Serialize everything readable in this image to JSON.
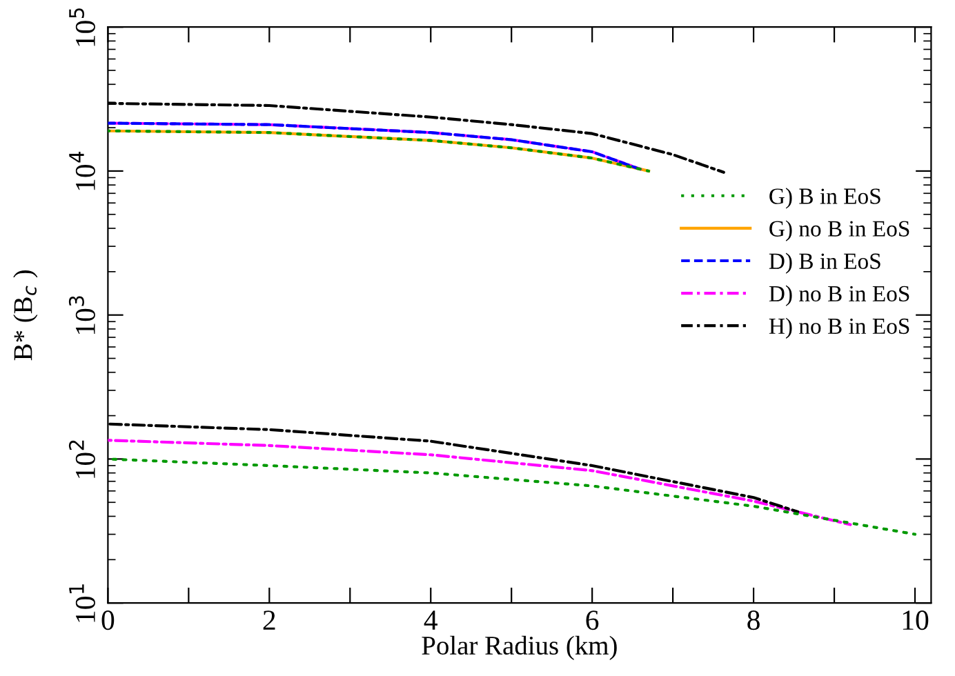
{
  "chart_data": {
    "type": "line",
    "xlabel": "Polar Radius (km)",
    "ylabel": "B* (B$_{c}$ )",
    "log": "y",
    "xlim": [
      0,
      10.2
    ],
    "ylim": [
      10,
      100000
    ],
    "xticks": [
      0,
      {
        "value": 1,
        "label": null
      },
      2,
      {
        "value": 3,
        "label": null
      },
      4,
      {
        "value": 5,
        "label": null
      },
      6,
      {
        "value": 7,
        "label": null
      },
      8,
      {
        "value": 9,
        "label": null
      },
      10
    ],
    "yticks": [
      {
        "value": 10,
        "label": "10$^{1}$"
      },
      {
        "value": 100,
        "label": "10$^{2}$"
      },
      {
        "value": 1000,
        "label": "10$^{3}$"
      },
      {
        "value": 10000,
        "label": "10$^{4}$"
      },
      {
        "value": 100000,
        "label": "10$^{5}$"
      }
    ],
    "grid": false,
    "legend": "right",
    "series": [
      {
        "name": "G) B in EoS",
        "color": "#009900",
        "line_style": "dotted",
        "x": [
          0,
          2,
          4,
          5,
          6,
          6.7
        ],
        "values": [
          19000,
          18500,
          16300,
          14500,
          12300,
          10000
        ]
      },
      {
        "name": "G) no B in EoS",
        "color": "#ffa500",
        "line_style": "solid",
        "x": [
          0,
          2,
          4,
          5,
          6,
          6.7
        ],
        "values": [
          19000,
          18500,
          16300,
          14500,
          12300,
          10000
        ]
      },
      {
        "name": "D) B in EoS",
        "color": "#0000ff",
        "line_style": "dashed",
        "x": [
          0,
          2,
          4,
          5,
          6,
          6.55
        ],
        "values": [
          21500,
          21000,
          18500,
          16500,
          13600,
          10500
        ]
      },
      {
        "name": "D) no B in EoS",
        "color": "#ff00ff",
        "line_style": "dashdot",
        "x": [
          0,
          2,
          4,
          5,
          6,
          6.6
        ],
        "values": [
          21500,
          21000,
          18500,
          16500,
          13600,
          10300
        ]
      },
      {
        "name": "H) no B in EoS",
        "color": "#000000",
        "line_style": "dashdot",
        "x": [
          0,
          2,
          4,
          5,
          6,
          7,
          7.63
        ],
        "values": [
          29500,
          28500,
          23700,
          21000,
          18200,
          13000,
          9800
        ]
      },
      {
        "color": "#009900",
        "line_style": "dotted",
        "x": [
          0,
          2,
          4,
          6,
          8,
          10
        ],
        "values": [
          100,
          90,
          80,
          65,
          47,
          30
        ]
      },
      {
        "color": "#ff00ff",
        "line_style": "dashdot",
        "x": [
          0,
          2,
          4,
          6,
          8,
          9.2
        ],
        "values": [
          135,
          124,
          107,
          83,
          51,
          35
        ]
      },
      {
        "color": "#000000",
        "line_style": "dashdot",
        "x": [
          0,
          2,
          4,
          6,
          8,
          8.55
        ],
        "values": [
          175,
          160,
          133,
          90,
          54,
          43
        ]
      }
    ]
  }
}
